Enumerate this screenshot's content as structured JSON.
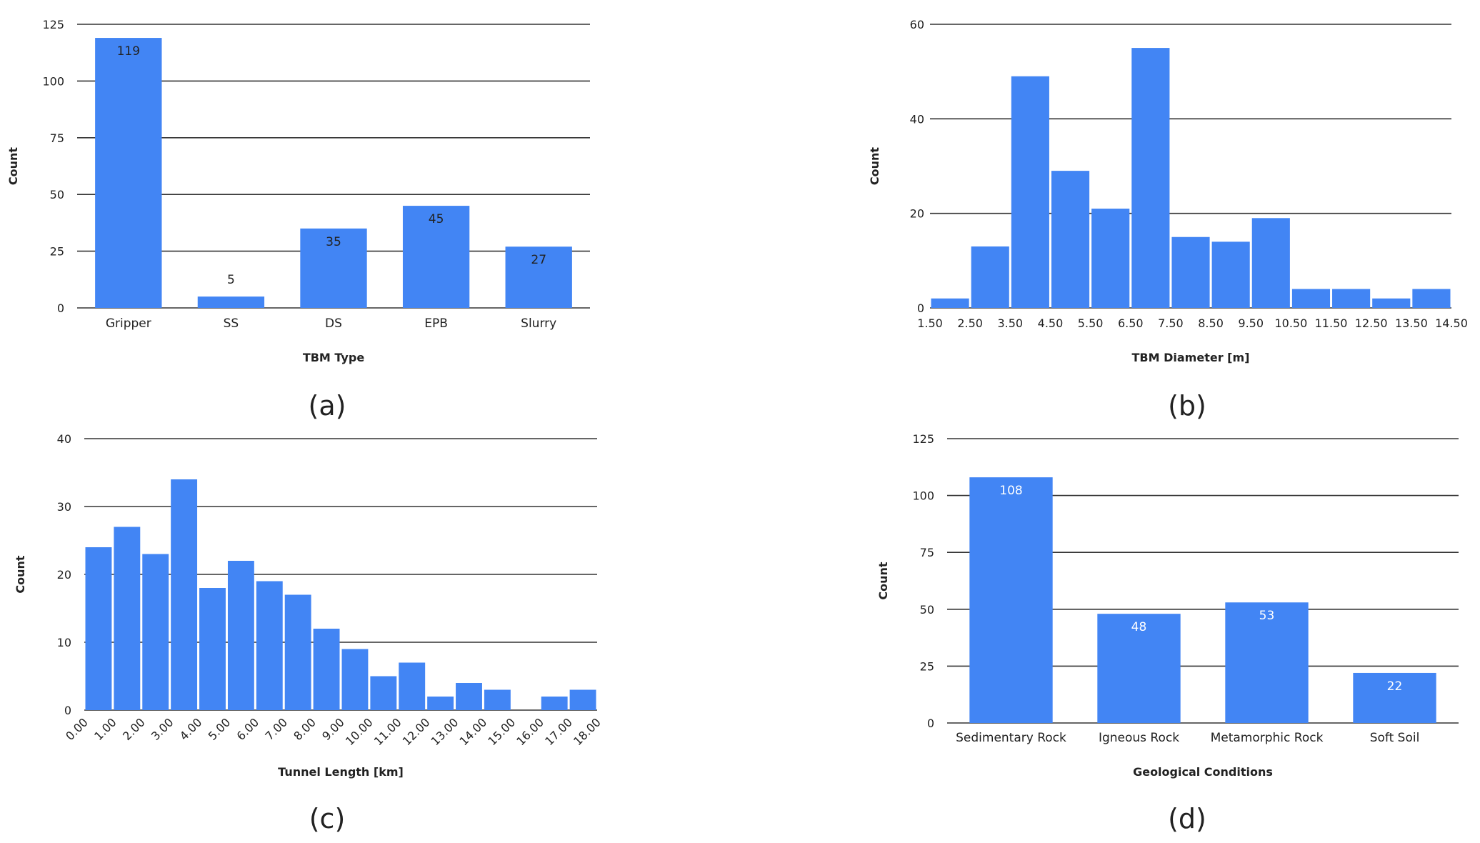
{
  "colors": {
    "bar": "#4285f4",
    "grid": "#333333",
    "text": "#222222",
    "label_light": "#ffffff"
  },
  "captions": [
    "(a)",
    "(b)",
    "(c)",
    "(d)"
  ],
  "chart_data": [
    {
      "type": "bar",
      "xlabel": "TBM Type",
      "ylabel": "Count",
      "ylim": [
        0,
        125
      ],
      "yticks": [
        "0",
        "25",
        "50",
        "75",
        "100",
        "125"
      ],
      "categories": [
        "Gripper",
        "SS",
        "DS",
        "EPB",
        "Slurry"
      ],
      "values": [
        119,
        5,
        35,
        45,
        27
      ],
      "data_labels": [
        "119",
        "5",
        "35",
        "45",
        "27"
      ]
    },
    {
      "type": "bar",
      "xlabel": "TBM Diameter [m]",
      "ylabel": "Count",
      "ylim": [
        0,
        60
      ],
      "yticks": [
        "0",
        "20",
        "40",
        "60"
      ],
      "bin_edges": [
        "1.50",
        "2.50",
        "3.50",
        "4.50",
        "5.50",
        "6.50",
        "7.50",
        "8.50",
        "9.50",
        "10.50",
        "11.50",
        "12.50",
        "13.50",
        "14.50"
      ],
      "values": [
        2,
        13,
        49,
        29,
        21,
        55,
        15,
        14,
        19,
        4,
        4,
        2,
        4
      ]
    },
    {
      "type": "bar",
      "xlabel": "Tunnel Length [km]",
      "ylabel": "Count",
      "ylim": [
        0,
        40
      ],
      "yticks": [
        "0",
        "10",
        "20",
        "30",
        "40"
      ],
      "bin_edges": [
        "0.00",
        "1.00",
        "2.00",
        "3.00",
        "4.00",
        "5.00",
        "6.00",
        "7.00",
        "8.00",
        "9.00",
        "10.00",
        "11.00",
        "12.00",
        "13.00",
        "14.00",
        "15.00",
        "16.00",
        "17.00",
        "18.00"
      ],
      "values": [
        24,
        27,
        23,
        34,
        18,
        22,
        19,
        17,
        12,
        9,
        5,
        7,
        2,
        4,
        3,
        0,
        2,
        3
      ]
    },
    {
      "type": "bar",
      "xlabel": "Geological Conditions",
      "ylabel": "Count",
      "ylim": [
        0,
        125
      ],
      "yticks": [
        "0",
        "25",
        "50",
        "75",
        "100",
        "125"
      ],
      "categories": [
        "Sedimentary Rock",
        "Igneous Rock",
        "Metamorphic Rock",
        "Soft Soil"
      ],
      "values": [
        108,
        48,
        53,
        22
      ],
      "data_labels": [
        "108",
        "48",
        "53",
        "22"
      ]
    }
  ]
}
